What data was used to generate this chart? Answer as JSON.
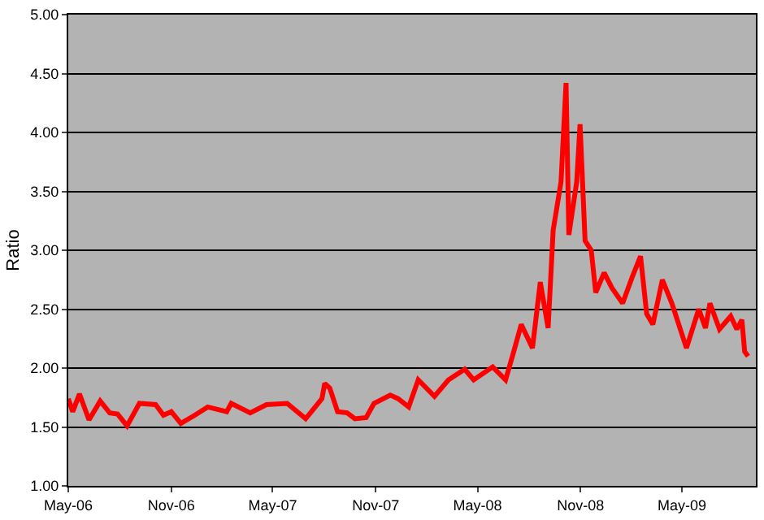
{
  "chart_data": {
    "type": "line",
    "ylabel": "Ratio",
    "x": [
      "2006-05-01",
      "2006-05-09",
      "2006-05-21",
      "2006-06-07",
      "2006-06-27",
      "2006-07-14",
      "2006-07-28",
      "2006-08-14",
      "2006-09-05",
      "2006-10-04",
      "2006-10-18",
      "2006-11-01",
      "2006-11-18",
      "2006-12-13",
      "2007-01-05",
      "2007-02-08",
      "2007-02-16",
      "2007-03-22",
      "2007-04-20",
      "2007-05-27",
      "2007-06-29",
      "2007-07-28",
      "2007-08-02",
      "2007-08-11",
      "2007-08-25",
      "2007-09-11",
      "2007-09-25",
      "2007-10-15",
      "2007-10-29",
      "2007-11-27",
      "2007-12-11",
      "2007-12-30",
      "2008-01-16",
      "2008-02-14",
      "2008-03-10",
      "2008-04-08",
      "2008-04-24",
      "2008-05-28",
      "2008-06-20",
      "2008-07-04",
      "2008-07-18",
      "2008-08-07",
      "2008-08-21",
      "2008-09-04",
      "2008-09-13",
      "2008-09-27",
      "2008-10-06",
      "2008-10-11",
      "2008-10-25",
      "2008-10-31",
      "2008-11-09",
      "2008-11-20",
      "2008-11-28",
      "2008-12-13",
      "2008-12-27",
      "2009-01-15",
      "2009-02-01",
      "2009-02-16",
      "2009-02-27",
      "2009-03-10",
      "2009-03-27",
      "2009-04-13",
      "2009-05-09",
      "2009-05-31",
      "2009-06-12",
      "2009-06-20",
      "2009-07-07",
      "2009-07-27",
      "2009-08-07",
      "2009-08-16",
      "2009-08-21",
      "2009-08-27"
    ],
    "series": [
      {
        "color": "#ff0000",
        "values": [
          1.74,
          1.63,
          1.78,
          1.56,
          1.72,
          1.62,
          1.61,
          1.51,
          1.7,
          1.69,
          1.6,
          1.63,
          1.53,
          1.6,
          1.67,
          1.63,
          1.7,
          1.62,
          1.69,
          1.7,
          1.57,
          1.74,
          1.87,
          1.83,
          1.63,
          1.62,
          1.57,
          1.58,
          1.7,
          1.77,
          1.74,
          1.67,
          1.9,
          1.76,
          1.9,
          1.99,
          1.9,
          2.01,
          1.9,
          2.13,
          2.37,
          2.17,
          2.73,
          2.34,
          3.17,
          3.58,
          4.42,
          3.13,
          3.58,
          4.07,
          3.08,
          3.0,
          2.64,
          2.81,
          2.68,
          2.55,
          2.77,
          2.95,
          2.46,
          2.37,
          2.75,
          2.55,
          2.17,
          2.5,
          2.34,
          2.55,
          2.33,
          2.44,
          2.33,
          2.41,
          2.14,
          2.1
        ]
      }
    ],
    "xlim": [
      "2006-05-01",
      "2009-09-10"
    ],
    "xticks": [
      {
        "value": "2006-05-01",
        "label": "May-06"
      },
      {
        "value": "2006-11-01",
        "label": "Nov-06"
      },
      {
        "value": "2007-05-01",
        "label": "May-07"
      },
      {
        "value": "2007-11-01",
        "label": "Nov-07"
      },
      {
        "value": "2008-05-01",
        "label": "May-08"
      },
      {
        "value": "2008-11-01",
        "label": "Nov-08"
      },
      {
        "value": "2009-05-01",
        "label": "May-09"
      }
    ],
    "ylim": [
      1,
      5
    ],
    "yticks": [
      {
        "value": 1,
        "label": "1.00"
      },
      {
        "value": 1.5,
        "label": "1.50"
      },
      {
        "value": 2,
        "label": "2.00"
      },
      {
        "value": 2.5,
        "label": "2.50"
      },
      {
        "value": 3,
        "label": "3.00"
      },
      {
        "value": 3.5,
        "label": "3.50"
      },
      {
        "value": 4,
        "label": "4.00"
      },
      {
        "value": 4.5,
        "label": "4.50"
      },
      {
        "value": 5,
        "label": "5.00"
      }
    ],
    "grid": "y",
    "marker": "none",
    "line_style": "solid"
  }
}
